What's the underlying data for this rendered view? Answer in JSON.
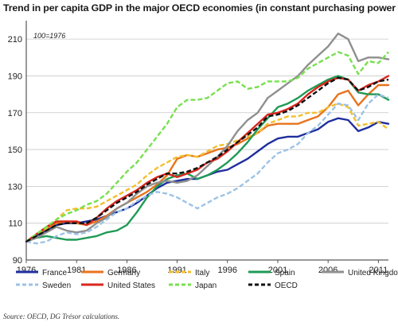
{
  "title": "Trend in per capita GDP in the major OECD economies (in constant purchasing power parities",
  "source": "Source: OECD, DG Trésor calculations.",
  "chart_data": {
    "type": "line",
    "annotation": "100=1976",
    "x_ticks": [
      1976,
      1981,
      1986,
      1991,
      1996,
      2001,
      2006,
      2011
    ],
    "y_ticks": [
      90,
      110,
      130,
      150,
      170,
      190,
      210
    ],
    "xlim": [
      1976,
      2012
    ],
    "ylim": [
      90,
      220
    ],
    "grid": "horizontal",
    "legend_position": "bottom",
    "x": [
      1976,
      1977,
      1978,
      1979,
      1980,
      1981,
      1982,
      1983,
      1984,
      1985,
      1986,
      1987,
      1988,
      1989,
      1990,
      1991,
      1992,
      1993,
      1994,
      1995,
      1996,
      1997,
      1998,
      1999,
      2000,
      2001,
      2002,
      2003,
      2004,
      2005,
      2006,
      2007,
      2008,
      2009,
      2010,
      2011,
      2012
    ],
    "series": [
      {
        "name": "France",
        "color": "#1f2f9e",
        "dash": "solid",
        "values": [
          100,
          103,
          106,
          109,
          110,
          110,
          111,
          112,
          114,
          116,
          118,
          121,
          125,
          129,
          132,
          133,
          134,
          134,
          136,
          138,
          139,
          142,
          145,
          149,
          153,
          156,
          157,
          157,
          159,
          161,
          165,
          167,
          166,
          160,
          162,
          165,
          164
        ]
      },
      {
        "name": "Germany",
        "color": "#e8731c",
        "dash": "solid",
        "values": [
          100,
          104,
          107,
          110,
          111,
          110,
          109,
          111,
          114,
          118,
          121,
          124,
          127,
          131,
          136,
          145,
          147,
          146,
          148,
          150,
          151,
          153,
          156,
          159,
          163,
          164,
          164,
          164,
          166,
          168,
          173,
          180,
          182,
          174,
          180,
          185,
          185
        ]
      },
      {
        "name": "Italy",
        "color": "#f2bf2c",
        "dash": "dashed",
        "values": [
          100,
          103,
          107,
          112,
          117,
          118,
          118,
          119,
          122,
          125,
          128,
          131,
          136,
          140,
          143,
          146,
          147,
          146,
          149,
          152,
          153,
          155,
          157,
          159,
          164,
          166,
          168,
          168,
          170,
          170,
          173,
          175,
          173,
          163,
          164,
          165,
          161
        ]
      },
      {
        "name": "Spain",
        "color": "#1f9a55",
        "dash": "solid",
        "values": [
          100,
          102,
          103,
          102,
          101,
          101,
          102,
          103,
          105,
          106,
          109,
          116,
          124,
          130,
          134,
          136,
          137,
          134,
          136,
          139,
          143,
          148,
          154,
          161,
          167,
          173,
          175,
          178,
          182,
          185,
          188,
          190,
          188,
          181,
          180,
          180,
          177
        ]
      },
      {
        "name": "United Kingdom",
        "color": "#8f8f8f",
        "dash": "solid",
        "values": [
          100,
          102,
          105,
          108,
          106,
          105,
          106,
          110,
          113,
          118,
          121,
          126,
          130,
          132,
          133,
          132,
          133,
          136,
          141,
          146,
          152,
          160,
          166,
          170,
          178,
          182,
          186,
          190,
          196,
          201,
          206,
          213,
          210,
          198,
          200,
          200,
          199
        ]
      },
      {
        "name": "Sweden",
        "color": "#9cc3e6",
        "dash": "dashed",
        "values": [
          100,
          99,
          100,
          103,
          105,
          104,
          105,
          108,
          112,
          116,
          118,
          122,
          125,
          127,
          126,
          124,
          121,
          118,
          121,
          124,
          126,
          129,
          133,
          137,
          143,
          148,
          150,
          153,
          159,
          163,
          169,
          175,
          174,
          166,
          175,
          180,
          178
        ]
      },
      {
        "name": "United States",
        "color": "#d9261c",
        "dash": "solid",
        "values": [
          100,
          104,
          108,
          111,
          111,
          111,
          109,
          113,
          118,
          122,
          125,
          128,
          132,
          135,
          137,
          135,
          137,
          139,
          143,
          145,
          149,
          154,
          159,
          164,
          169,
          170,
          172,
          175,
          180,
          184,
          187,
          189,
          188,
          182,
          185,
          187,
          190
        ]
      },
      {
        "name": "Japan",
        "color": "#77e04e",
        "dash": "dashed",
        "values": [
          100,
          104,
          108,
          112,
          115,
          117,
          120,
          122,
          126,
          132,
          138,
          143,
          150,
          157,
          164,
          173,
          177,
          177,
          178,
          182,
          186,
          187,
          183,
          184,
          187,
          187,
          187,
          189,
          194,
          197,
          200,
          203,
          201,
          191,
          198,
          197,
          203
        ]
      },
      {
        "name": "OECD",
        "color": "#111111",
        "dash": "dashed",
        "values": [
          100,
          103,
          106,
          109,
          110,
          110,
          110,
          113,
          117,
          121,
          124,
          127,
          131,
          134,
          137,
          137,
          138,
          140,
          143,
          146,
          150,
          154,
          158,
          162,
          168,
          169,
          171,
          174,
          178,
          182,
          186,
          189,
          188,
          182,
          184,
          187,
          188
        ]
      }
    ],
    "legend_rows": [
      [
        "France",
        "Germany",
        "Italy",
        "Spain",
        "United Kingdom"
      ],
      [
        "Sweden",
        "United States",
        "Japan",
        "OECD"
      ]
    ]
  }
}
